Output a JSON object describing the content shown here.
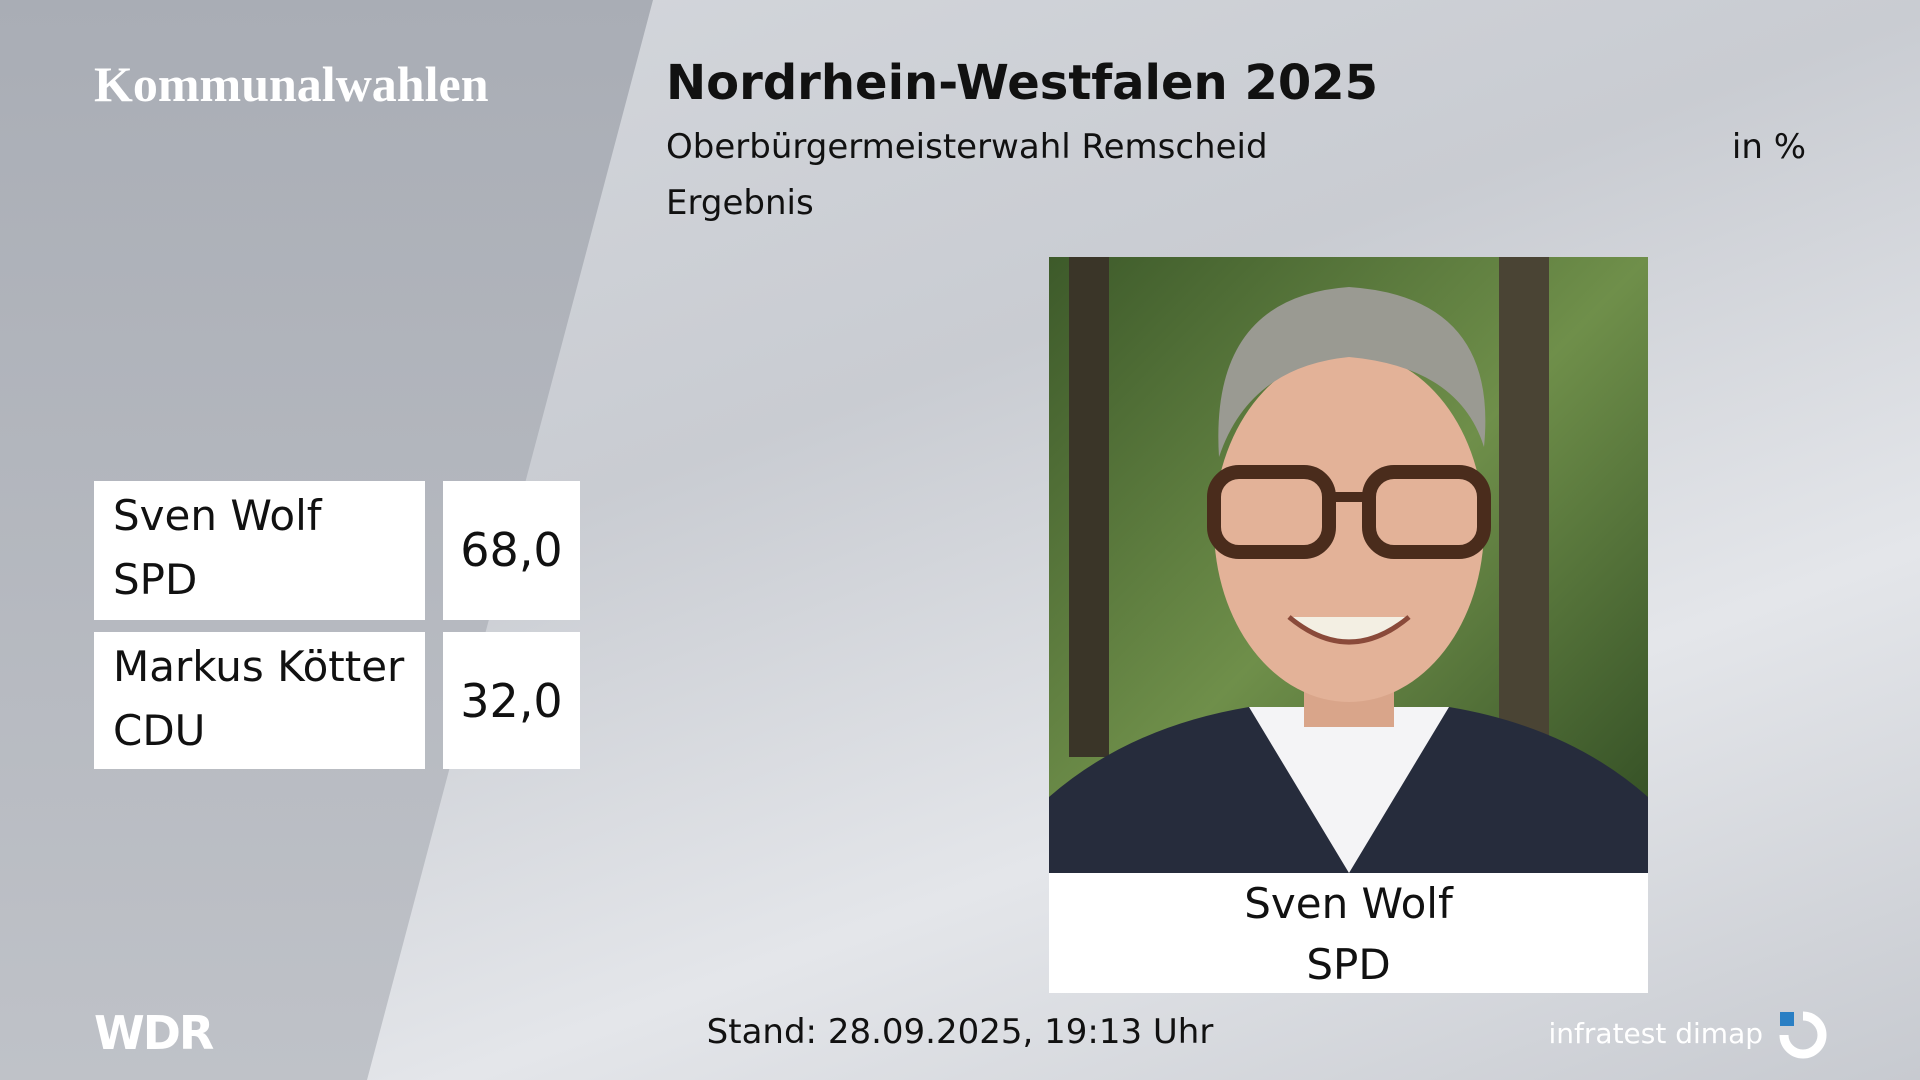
{
  "header": {
    "section": "Kommunalwahlen",
    "title": "Nordrhein-Westfalen 2025",
    "subtitle": "Oberbürgermeisterwahl Remscheid",
    "unit": "in %",
    "label": "Ergebnis"
  },
  "results": [
    {
      "name": "Sven Wolf",
      "party": "SPD",
      "value": "68,0"
    },
    {
      "name": "Markus Kötter",
      "party": "CDU",
      "value": "32,0"
    }
  ],
  "winner": {
    "name": "Sven Wolf",
    "party": "SPD"
  },
  "footer": {
    "broadcaster": "WDR",
    "timestamp": "Stand: 28.09.2025, 19:13 Uhr",
    "source": "infratest dimap"
  }
}
